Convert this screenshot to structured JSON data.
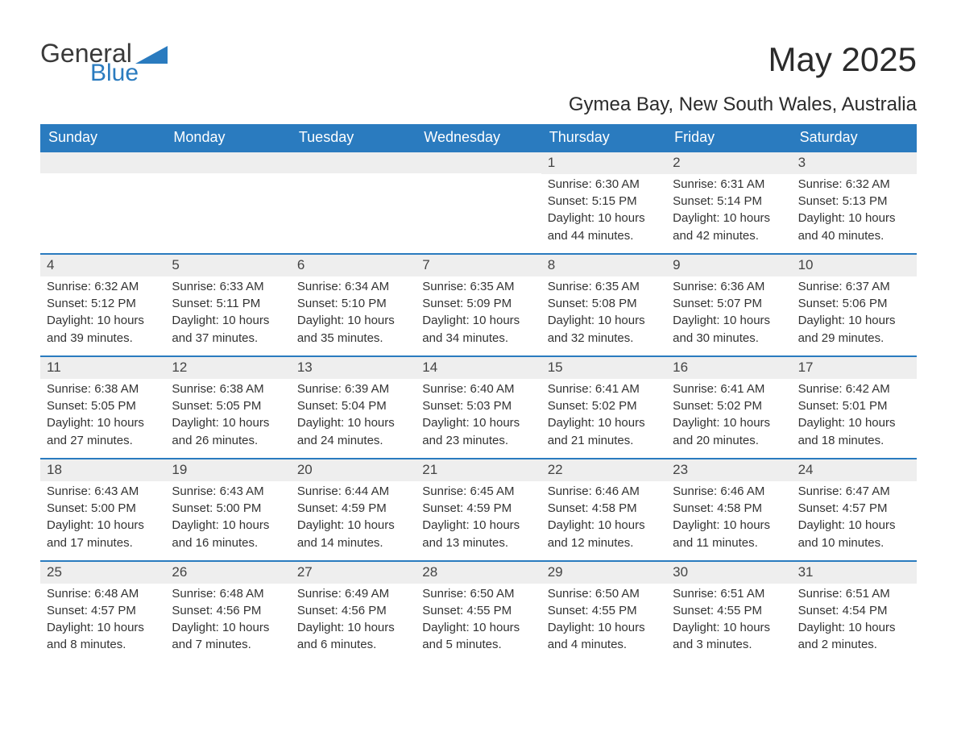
{
  "logo": {
    "general": "General",
    "blue": "Blue",
    "brand_color": "#2a7bbf"
  },
  "title": "May 2025",
  "location": "Gymea Bay, New South Wales, Australia",
  "weekdays": [
    "Sunday",
    "Monday",
    "Tuesday",
    "Wednesday",
    "Thursday",
    "Friday",
    "Saturday"
  ],
  "colors": {
    "header_bg": "#2a7bbf",
    "header_text": "#ffffff",
    "week_border": "#2a7bbf",
    "daynum_bg": "#eeeeee",
    "text": "#333333",
    "background": "#ffffff"
  },
  "font": {
    "title_size": 42,
    "subtitle_size": 24,
    "weekday_size": 18,
    "body_size": 15
  },
  "weeks": [
    [
      null,
      null,
      null,
      null,
      {
        "n": "1",
        "sunrise": "6:30 AM",
        "sunset": "5:15 PM",
        "dl1": "Daylight: 10 hours",
        "dl2": "and 44 minutes."
      },
      {
        "n": "2",
        "sunrise": "6:31 AM",
        "sunset": "5:14 PM",
        "dl1": "Daylight: 10 hours",
        "dl2": "and 42 minutes."
      },
      {
        "n": "3",
        "sunrise": "6:32 AM",
        "sunset": "5:13 PM",
        "dl1": "Daylight: 10 hours",
        "dl2": "and 40 minutes."
      }
    ],
    [
      {
        "n": "4",
        "sunrise": "6:32 AM",
        "sunset": "5:12 PM",
        "dl1": "Daylight: 10 hours",
        "dl2": "and 39 minutes."
      },
      {
        "n": "5",
        "sunrise": "6:33 AM",
        "sunset": "5:11 PM",
        "dl1": "Daylight: 10 hours",
        "dl2": "and 37 minutes."
      },
      {
        "n": "6",
        "sunrise": "6:34 AM",
        "sunset": "5:10 PM",
        "dl1": "Daylight: 10 hours",
        "dl2": "and 35 minutes."
      },
      {
        "n": "7",
        "sunrise": "6:35 AM",
        "sunset": "5:09 PM",
        "dl1": "Daylight: 10 hours",
        "dl2": "and 34 minutes."
      },
      {
        "n": "8",
        "sunrise": "6:35 AM",
        "sunset": "5:08 PM",
        "dl1": "Daylight: 10 hours",
        "dl2": "and 32 minutes."
      },
      {
        "n": "9",
        "sunrise": "6:36 AM",
        "sunset": "5:07 PM",
        "dl1": "Daylight: 10 hours",
        "dl2": "and 30 minutes."
      },
      {
        "n": "10",
        "sunrise": "6:37 AM",
        "sunset": "5:06 PM",
        "dl1": "Daylight: 10 hours",
        "dl2": "and 29 minutes."
      }
    ],
    [
      {
        "n": "11",
        "sunrise": "6:38 AM",
        "sunset": "5:05 PM",
        "dl1": "Daylight: 10 hours",
        "dl2": "and 27 minutes."
      },
      {
        "n": "12",
        "sunrise": "6:38 AM",
        "sunset": "5:05 PM",
        "dl1": "Daylight: 10 hours",
        "dl2": "and 26 minutes."
      },
      {
        "n": "13",
        "sunrise": "6:39 AM",
        "sunset": "5:04 PM",
        "dl1": "Daylight: 10 hours",
        "dl2": "and 24 minutes."
      },
      {
        "n": "14",
        "sunrise": "6:40 AM",
        "sunset": "5:03 PM",
        "dl1": "Daylight: 10 hours",
        "dl2": "and 23 minutes."
      },
      {
        "n": "15",
        "sunrise": "6:41 AM",
        "sunset": "5:02 PM",
        "dl1": "Daylight: 10 hours",
        "dl2": "and 21 minutes."
      },
      {
        "n": "16",
        "sunrise": "6:41 AM",
        "sunset": "5:02 PM",
        "dl1": "Daylight: 10 hours",
        "dl2": "and 20 minutes."
      },
      {
        "n": "17",
        "sunrise": "6:42 AM",
        "sunset": "5:01 PM",
        "dl1": "Daylight: 10 hours",
        "dl2": "and 18 minutes."
      }
    ],
    [
      {
        "n": "18",
        "sunrise": "6:43 AM",
        "sunset": "5:00 PM",
        "dl1": "Daylight: 10 hours",
        "dl2": "and 17 minutes."
      },
      {
        "n": "19",
        "sunrise": "6:43 AM",
        "sunset": "5:00 PM",
        "dl1": "Daylight: 10 hours",
        "dl2": "and 16 minutes."
      },
      {
        "n": "20",
        "sunrise": "6:44 AM",
        "sunset": "4:59 PM",
        "dl1": "Daylight: 10 hours",
        "dl2": "and 14 minutes."
      },
      {
        "n": "21",
        "sunrise": "6:45 AM",
        "sunset": "4:59 PM",
        "dl1": "Daylight: 10 hours",
        "dl2": "and 13 minutes."
      },
      {
        "n": "22",
        "sunrise": "6:46 AM",
        "sunset": "4:58 PM",
        "dl1": "Daylight: 10 hours",
        "dl2": "and 12 minutes."
      },
      {
        "n": "23",
        "sunrise": "6:46 AM",
        "sunset": "4:58 PM",
        "dl1": "Daylight: 10 hours",
        "dl2": "and 11 minutes."
      },
      {
        "n": "24",
        "sunrise": "6:47 AM",
        "sunset": "4:57 PM",
        "dl1": "Daylight: 10 hours",
        "dl2": "and 10 minutes."
      }
    ],
    [
      {
        "n": "25",
        "sunrise": "6:48 AM",
        "sunset": "4:57 PM",
        "dl1": "Daylight: 10 hours",
        "dl2": "and 8 minutes."
      },
      {
        "n": "26",
        "sunrise": "6:48 AM",
        "sunset": "4:56 PM",
        "dl1": "Daylight: 10 hours",
        "dl2": "and 7 minutes."
      },
      {
        "n": "27",
        "sunrise": "6:49 AM",
        "sunset": "4:56 PM",
        "dl1": "Daylight: 10 hours",
        "dl2": "and 6 minutes."
      },
      {
        "n": "28",
        "sunrise": "6:50 AM",
        "sunset": "4:55 PM",
        "dl1": "Daylight: 10 hours",
        "dl2": "and 5 minutes."
      },
      {
        "n": "29",
        "sunrise": "6:50 AM",
        "sunset": "4:55 PM",
        "dl1": "Daylight: 10 hours",
        "dl2": "and 4 minutes."
      },
      {
        "n": "30",
        "sunrise": "6:51 AM",
        "sunset": "4:55 PM",
        "dl1": "Daylight: 10 hours",
        "dl2": "and 3 minutes."
      },
      {
        "n": "31",
        "sunrise": "6:51 AM",
        "sunset": "4:54 PM",
        "dl1": "Daylight: 10 hours",
        "dl2": "and 2 minutes."
      }
    ]
  ],
  "labels": {
    "sunrise": "Sunrise: ",
    "sunset": "Sunset: "
  }
}
